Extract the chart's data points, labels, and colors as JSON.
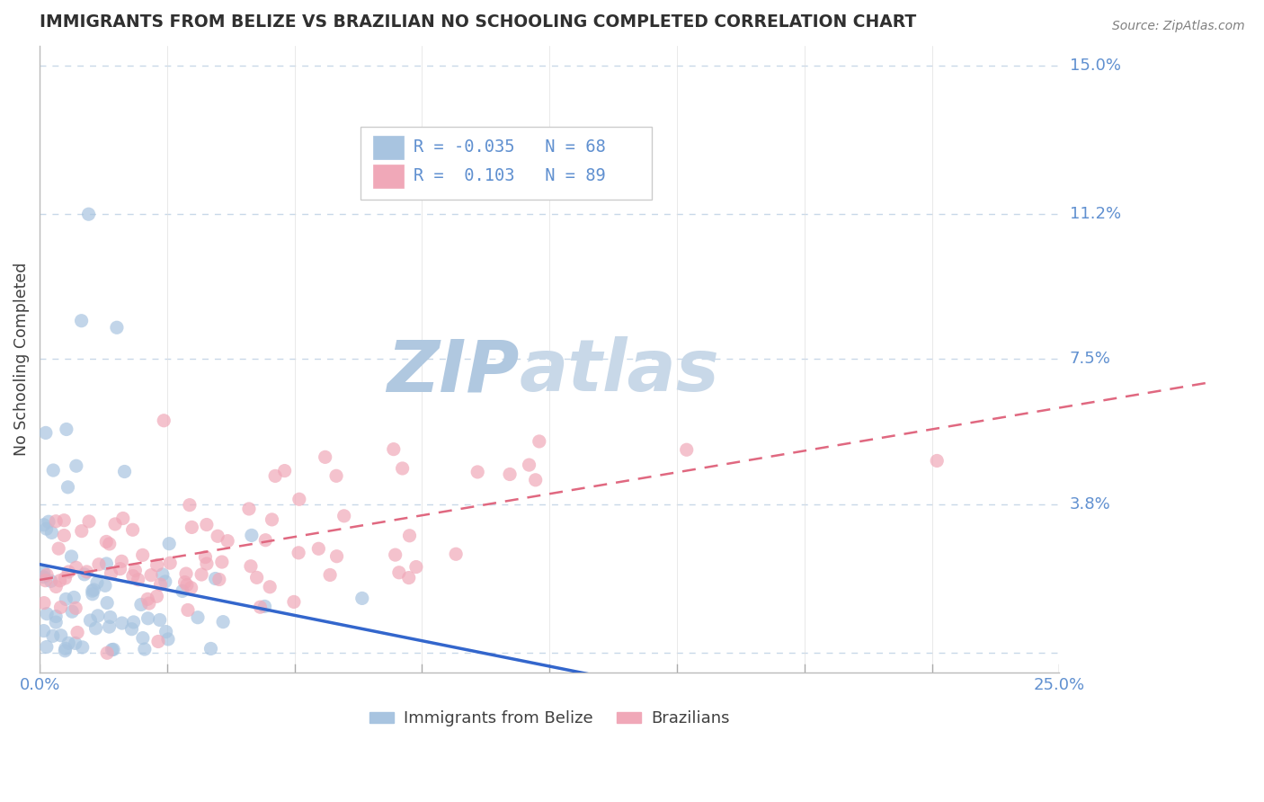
{
  "title": "IMMIGRANTS FROM BELIZE VS BRAZILIAN NO SCHOOLING COMPLETED CORRELATION CHART",
  "source_text": "Source: ZipAtlas.com",
  "ylabel": "No Schooling Completed",
  "watermark_zip": "ZIP",
  "watermark_atlas": "atlas",
  "xmin": 0.0,
  "xmax": 0.25,
  "ymin": -0.005,
  "ymax": 0.155,
  "yticks": [
    0.0,
    0.038,
    0.075,
    0.112,
    0.15
  ],
  "ytick_labels": [
    "",
    "3.8%",
    "7.5%",
    "11.2%",
    "15.0%"
  ],
  "xtick_labels": [
    "0.0%",
    "25.0%"
  ],
  "belize_R": -0.035,
  "belize_N": 68,
  "brazil_R": 0.103,
  "brazil_N": 89,
  "belize_color": "#a8c4e0",
  "brazil_color": "#f0a8b8",
  "belize_line_color": "#3366cc",
  "brazil_line_color": "#e06880",
  "belize_line_dash": "solid",
  "brazil_line_dash": "dashed",
  "grid_color": "#c8d8e8",
  "title_color": "#303030",
  "axis_label_color": "#404040",
  "tick_label_color": "#6090d0",
  "watermark_color_zip": "#b0c8e0",
  "watermark_color_atlas": "#c8d8e8",
  "legend_belize_label": "Immigrants from Belize",
  "legend_brazil_label": "Brazilians"
}
